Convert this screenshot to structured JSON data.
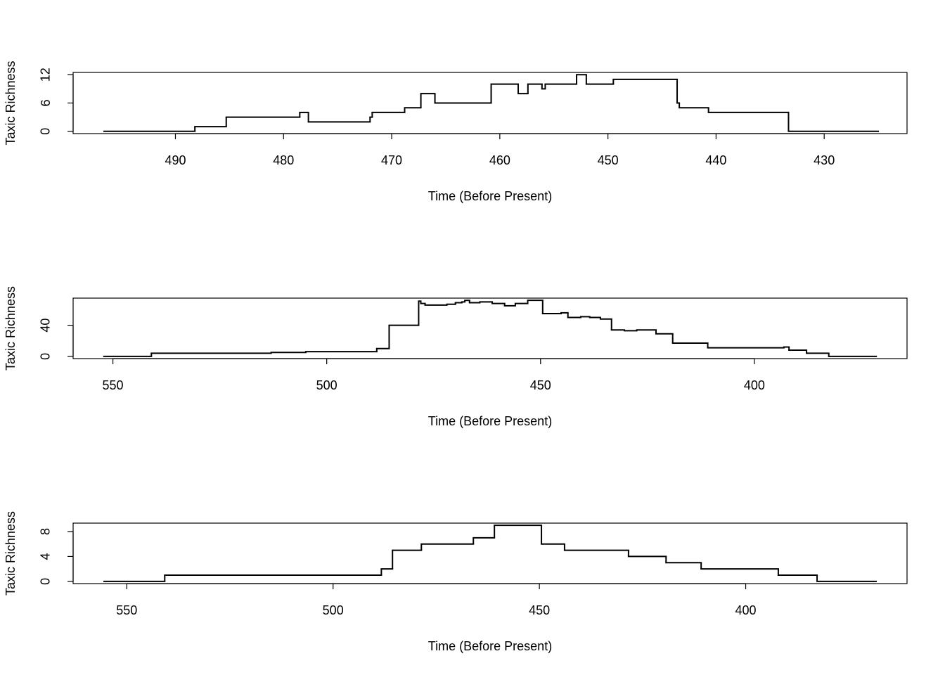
{
  "chart_data": [
    {
      "type": "step",
      "xlabel": "Time (Before Present)",
      "ylabel": "Taxic Richness",
      "x": [
        496.6,
        488.2,
        485.3,
        478.5,
        477.7,
        472.0,
        471.8,
        468.8,
        467.3,
        466.0,
        460.8,
        458.3,
        457.4,
        456.1,
        455.8,
        452.9,
        452.0,
        449.5,
        443.6,
        443.4,
        440.7,
        433.3,
        425.0
      ],
      "values": [
        0,
        1,
        3,
        4,
        2,
        3,
        4,
        5,
        8,
        6,
        10,
        8,
        10,
        9,
        10,
        12,
        10,
        11,
        6,
        5,
        4,
        0,
        0
      ],
      "xlim": [
        499.46,
        422.34
      ],
      "ylim": [
        -0.48,
        12.48
      ],
      "xticks": [
        490,
        480,
        470,
        460,
        450,
        440,
        430
      ],
      "yticks": [
        0,
        6,
        12
      ],
      "color": "#000000"
    },
    {
      "type": "step",
      "xlabel": "Time (Before Present)",
      "ylabel": "Taxic Richness",
      "x": [
        552.1,
        541.0,
        513.0,
        504.9,
        488.3,
        485.4,
        478.5,
        478.0,
        477.0,
        471.9,
        469.9,
        468.4,
        467.7,
        466.6,
        464.2,
        461.3,
        458.4,
        455.9,
        453.0,
        449.5,
        445.2,
        443.6,
        440.6,
        438.5,
        436.0,
        433.4,
        430.4,
        427.5,
        423.0,
        419.1,
        410.9,
        393.1,
        391.9,
        387.8,
        382.6,
        371.5
      ],
      "values": [
        0,
        4,
        5,
        6,
        10,
        40,
        71,
        68,
        66,
        67,
        69,
        70,
        72,
        69,
        70,
        68,
        65,
        68,
        72,
        55,
        56,
        50,
        51,
        50,
        48,
        34,
        33,
        34,
        29,
        17,
        11,
        12,
        8,
        4,
        0,
        0
      ],
      "xlim": [
        559.3,
        364.3
      ],
      "ylim": [
        -2.88,
        74.88
      ],
      "xticks": [
        550,
        500,
        450,
        400
      ],
      "yticks": [
        0,
        40
      ],
      "color": "#000000"
    },
    {
      "type": "step",
      "xlabel": "Time (Before Present)",
      "ylabel": "Taxic Richness",
      "x": [
        555.5,
        540.8,
        488.3,
        485.6,
        478.6,
        466.0,
        460.9,
        449.5,
        443.9,
        428.4,
        419.3,
        410.8,
        392.1,
        382.7,
        368.4
      ],
      "values": [
        0,
        1,
        2,
        5,
        6,
        7,
        9,
        6,
        5,
        4,
        3,
        2,
        1,
        0,
        0
      ],
      "xlim": [
        563.0,
        360.9
      ],
      "ylim": [
        -0.36,
        9.36
      ],
      "xticks": [
        550,
        500,
        450,
        400
      ],
      "yticks": [
        0,
        4,
        8
      ],
      "color": "#000000"
    }
  ]
}
